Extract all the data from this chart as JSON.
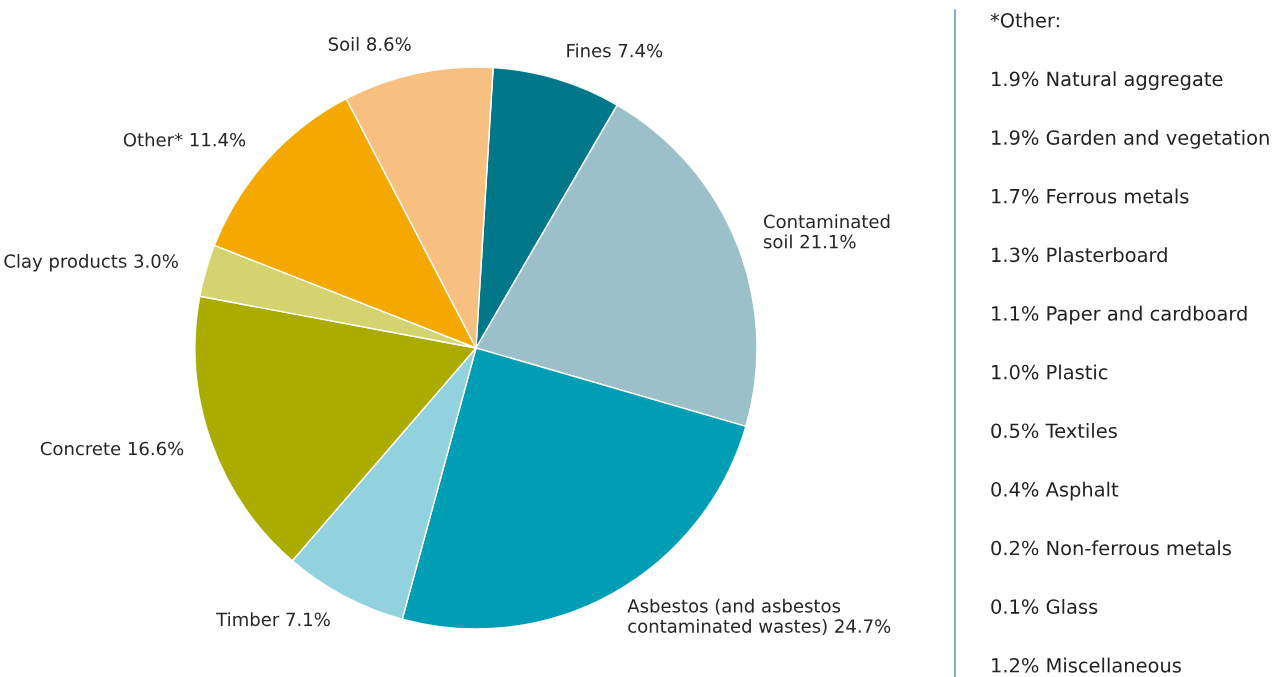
{
  "chart_data": {
    "type": "pie",
    "categories": [
      "Fines",
      "Contaminated\nsoil",
      "Asbestos (and asbestos\ncontaminated wastes)",
      "Timber",
      "Concrete",
      "Clay products",
      "Other*",
      "Soil"
    ],
    "values": [
      7.4,
      21.1,
      24.7,
      7.1,
      16.6,
      3.0,
      11.4,
      8.6
    ],
    "value_labels": [
      "7.4%",
      "21.1%",
      "24.7%",
      "7.1%",
      "16.6%",
      "3.0%",
      "11.4%",
      "8.6%"
    ],
    "colors": [
      "#00788a",
      "#9bc0c9",
      "#009eb5",
      "#92d1de",
      "#aaad00",
      "#d5d36f",
      "#f5a800",
      "#f7bf80"
    ],
    "legend": false,
    "annotations": [
      "*Other:",
      "1.9% Natural aggregate",
      "1.9% Garden and vegetation",
      "1.7% Ferrous metals",
      "1.3% Plasterboard",
      "1.1% Paper and cardboard",
      "1.0% Plastic",
      "0.5% Textiles",
      "0.4% Asphalt",
      "0.2% Non-ferrous metals",
      "0.1% Glass",
      "1.2% Miscellaneous"
    ]
  }
}
